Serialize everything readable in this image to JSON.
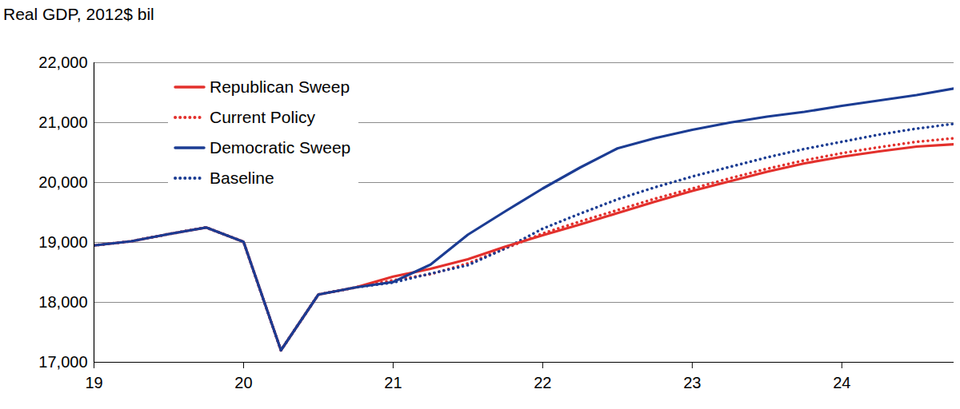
{
  "chart_data": {
    "type": "line",
    "y_label": "Real GDP, 2012$ bil",
    "x": [
      19,
      19.25,
      19.5,
      19.75,
      20,
      20.25,
      20.5,
      20.75,
      21,
      21.25,
      21.5,
      21.75,
      22,
      22.25,
      22.5,
      22.75,
      23,
      23.25,
      23.5,
      23.75,
      24,
      24.25,
      24.5,
      24.75
    ],
    "series": [
      {
        "name": "Republican Sweep",
        "color": "#e3302c",
        "line_style": "solid",
        "values": [
          18950,
          19020,
          19140,
          19250,
          19010,
          17200,
          18130,
          18250,
          18430,
          18560,
          18720,
          18930,
          19120,
          19300,
          19490,
          19680,
          19860,
          20020,
          20180,
          20320,
          20430,
          20520,
          20600,
          20640
        ]
      },
      {
        "name": "Current Policy",
        "color": "#e3302c",
        "line_style": "dotted",
        "values": [
          18950,
          19020,
          19140,
          19250,
          19010,
          17200,
          18130,
          18250,
          18370,
          18470,
          18650,
          18900,
          19150,
          19350,
          19540,
          19730,
          19900,
          20070,
          20230,
          20370,
          20490,
          20590,
          20680,
          20740
        ]
      },
      {
        "name": "Democratic Sweep",
        "color": "#1b3c93",
        "line_style": "solid",
        "values": [
          18950,
          19020,
          19140,
          19250,
          19010,
          17200,
          18130,
          18250,
          18340,
          18630,
          19130,
          19520,
          19900,
          20250,
          20570,
          20740,
          20880,
          21000,
          21100,
          21180,
          21280,
          21370,
          21460,
          21570
        ]
      },
      {
        "name": "Baseline",
        "color": "#1b3c93",
        "line_style": "dotted",
        "values": [
          18950,
          19020,
          19140,
          19250,
          19010,
          17200,
          18130,
          18250,
          18330,
          18480,
          18620,
          18900,
          19230,
          19480,
          19720,
          19920,
          20100,
          20260,
          20420,
          20560,
          20680,
          20800,
          20900,
          20980
        ]
      }
    ],
    "xlim": [
      19,
      24.75
    ],
    "xticks": [
      19,
      20,
      21,
      22,
      23,
      24
    ],
    "ylim": [
      17000,
      22000
    ],
    "yticks": [
      {
        "value": 17000,
        "label": "17,000"
      },
      {
        "value": 18000,
        "label": "18,000"
      },
      {
        "value": 19000,
        "label": "19,000"
      },
      {
        "value": 20000,
        "label": "20,000"
      },
      {
        "value": 21000,
        "label": "21,000"
      },
      {
        "value": 22000,
        "label": "22,000"
      }
    ],
    "grid": true,
    "legend": "upper left"
  }
}
